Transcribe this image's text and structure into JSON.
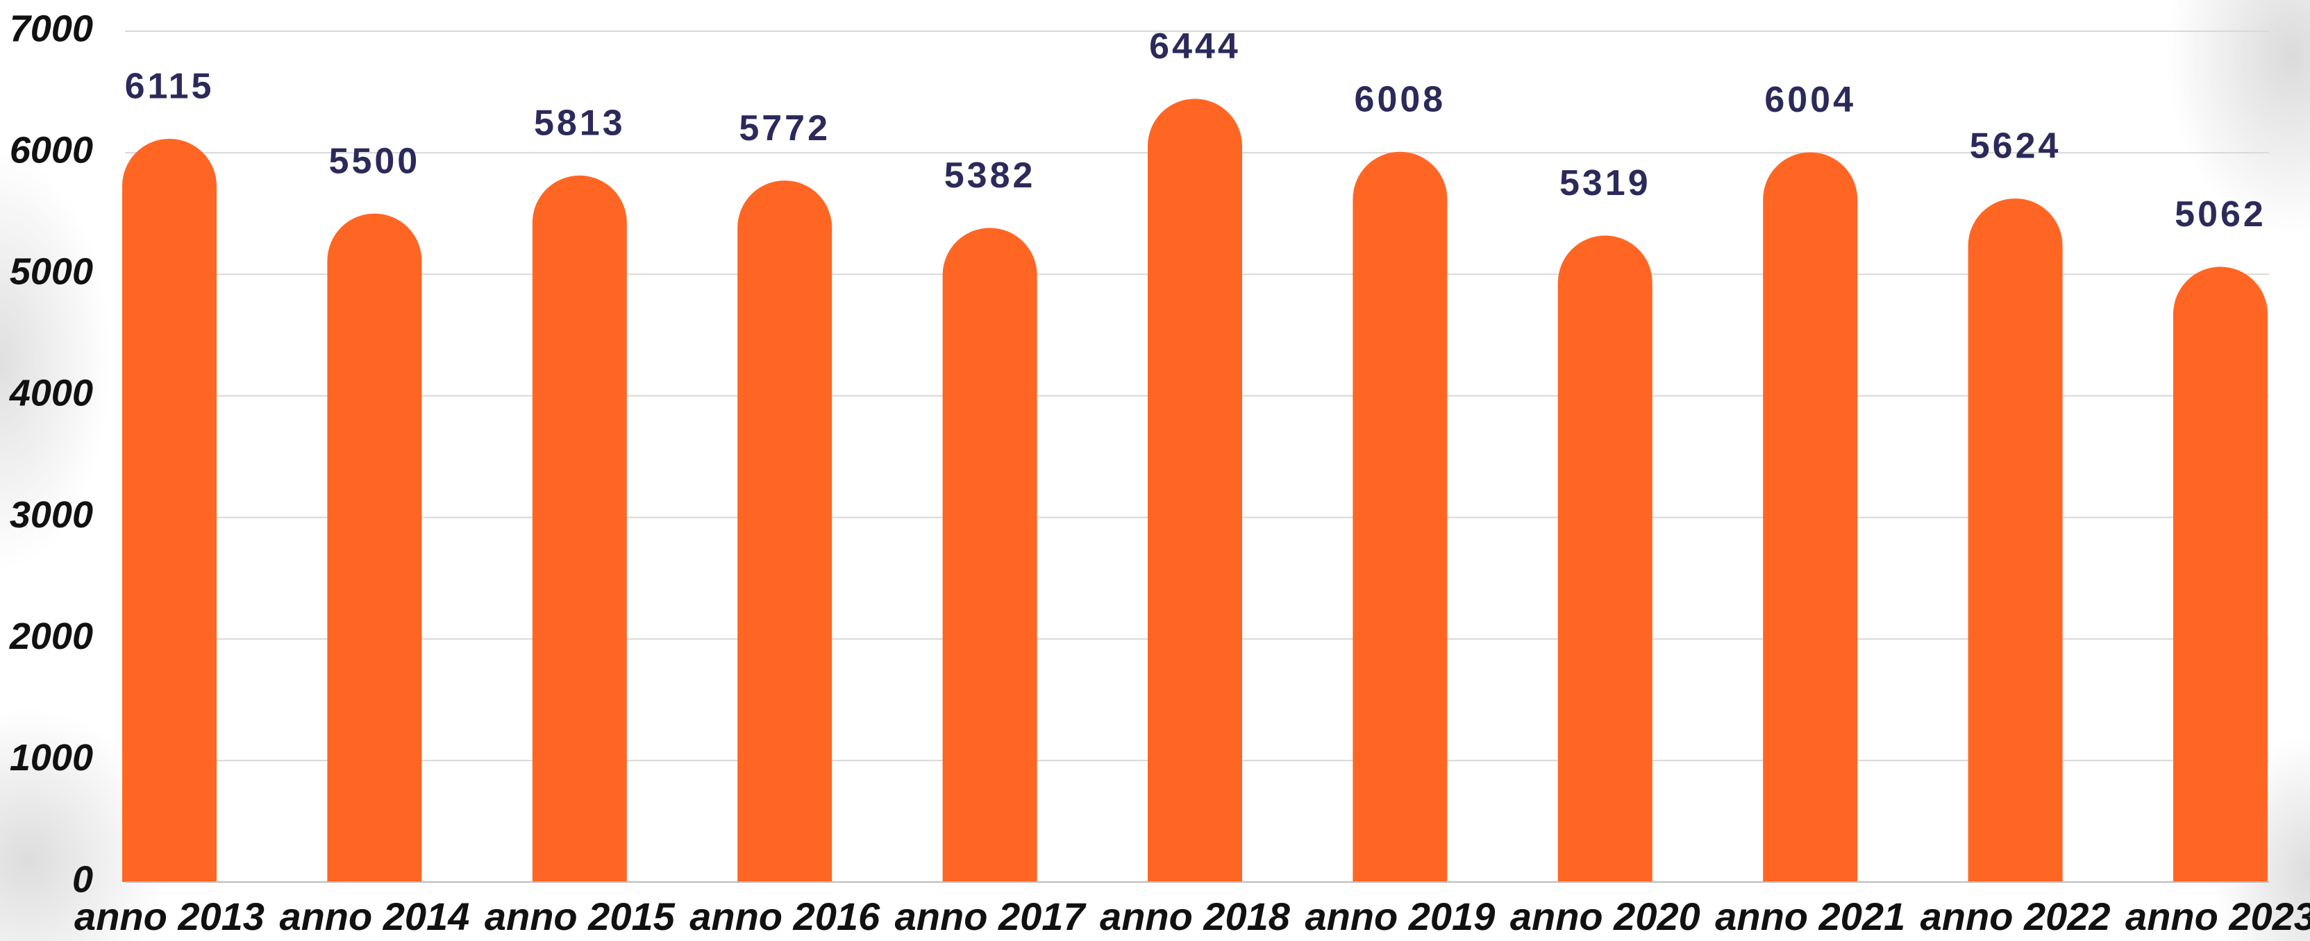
{
  "chart_data": {
    "type": "bar",
    "categories": [
      "anno 2013",
      "anno 2014",
      "anno 2015",
      "anno 2016",
      "anno 2017",
      "anno 2018",
      "anno 2019",
      "anno 2020",
      "anno 2021",
      "anno 2022",
      "anno 2023"
    ],
    "values": [
      6115,
      5500,
      5813,
      5772,
      5382,
      6444,
      6008,
      5319,
      6004,
      5624,
      5062
    ],
    "color": "#ff6624",
    "ylim": [
      0,
      7000
    ],
    "yticks": [
      0,
      1000,
      2000,
      3000,
      4000,
      5000,
      6000,
      7000
    ],
    "grid": true
  }
}
